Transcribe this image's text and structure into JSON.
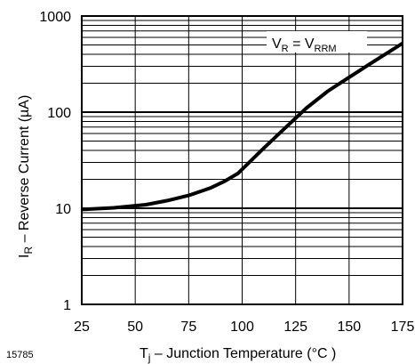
{
  "figure_id": "15785",
  "chart_data": {
    "type": "line",
    "xlabel": {
      "main": "T",
      "sub": "j",
      "rest": " – Junction Temperature (°C )"
    },
    "ylabel": {
      "main": "I",
      "sub": "R",
      "rest": " – Reverse Current (µA)"
    },
    "xlim": [
      25,
      175
    ],
    "ylim": [
      1,
      1000
    ],
    "yscale": "log",
    "grid": true,
    "x_ticks": [
      "25",
      "50",
      "75",
      "100",
      "125",
      "150",
      "175"
    ],
    "y_ticks": [
      "1",
      "10",
      "100",
      "1000"
    ],
    "annotation": {
      "a": "V",
      "a_sub": "R",
      "eq": " = ",
      "b": "V",
      "b_sub": "RRM"
    },
    "series": [
      {
        "x": [
          25,
          40,
          55,
          65,
          75,
          85,
          92,
          98,
          110,
          120,
          130,
          140,
          150,
          160,
          175
        ],
        "y": [
          9.7,
          10.1,
          10.9,
          12.0,
          13.6,
          16.2,
          19.2,
          23.0,
          42,
          68,
          110,
          165,
          230,
          320,
          520
        ]
      }
    ]
  }
}
